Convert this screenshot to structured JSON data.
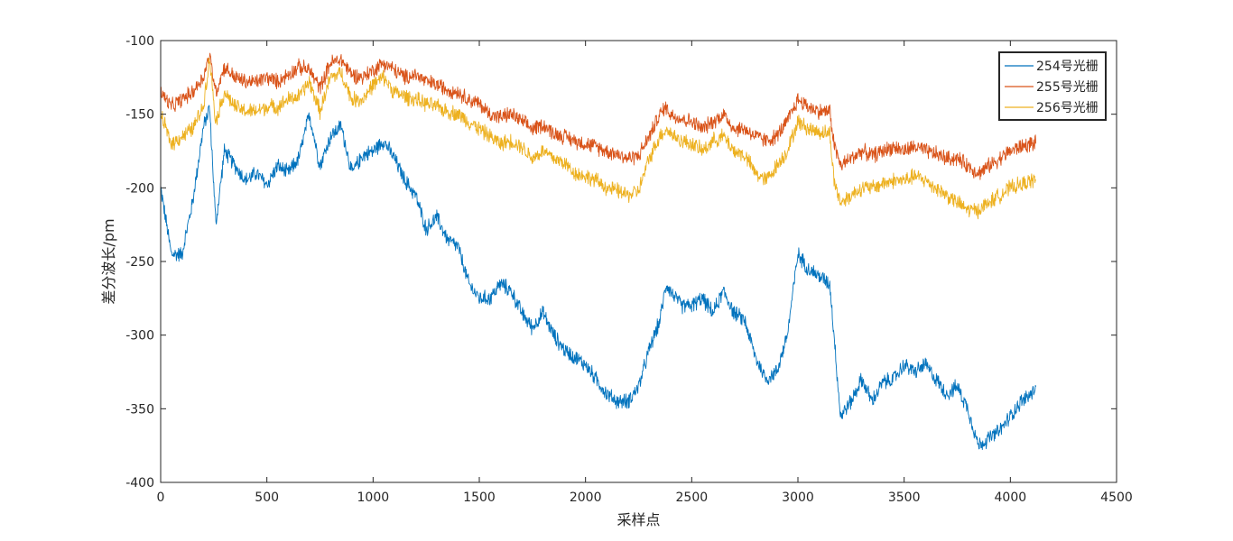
{
  "chart_data": {
    "type": "line",
    "title": "",
    "xlabel": "采样点",
    "ylabel": "差分波长/pm",
    "xlim": [
      0,
      4500
    ],
    "ylim": [
      -400,
      -100
    ],
    "xticks": [
      0,
      500,
      1000,
      1500,
      2000,
      2500,
      3000,
      3500,
      4000,
      4500
    ],
    "yticks": [
      -100,
      -150,
      -200,
      -250,
      -300,
      -350,
      -400
    ],
    "grid": false,
    "legend_position": "top-right",
    "noise_amplitude": 9,
    "series": [
      {
        "name": "254号光栅",
        "color": "#0072BD",
        "x": [
          0,
          50,
          100,
          150,
          200,
          230,
          260,
          300,
          350,
          400,
          450,
          500,
          550,
          600,
          650,
          700,
          750,
          800,
          850,
          900,
          950,
          1000,
          1050,
          1100,
          1150,
          1200,
          1250,
          1300,
          1350,
          1400,
          1450,
          1500,
          1550,
          1600,
          1650,
          1700,
          1750,
          1800,
          1850,
          1900,
          1950,
          2000,
          2050,
          2100,
          2150,
          2200,
          2250,
          2300,
          2350,
          2380,
          2400,
          2450,
          2500,
          2550,
          2600,
          2650,
          2700,
          2750,
          2800,
          2850,
          2900,
          2950,
          3000,
          3050,
          3100,
          3150,
          3170,
          3200,
          3250,
          3300,
          3350,
          3400,
          3450,
          3500,
          3550,
          3600,
          3650,
          3700,
          3750,
          3800,
          3850,
          3900,
          3950,
          4000,
          4050,
          4100,
          4120
        ],
        "y": [
          -200,
          -245,
          -245,
          -210,
          -160,
          -145,
          -225,
          -175,
          -185,
          -195,
          -190,
          -198,
          -185,
          -190,
          -180,
          -150,
          -185,
          -165,
          -158,
          -190,
          -178,
          -175,
          -168,
          -180,
          -195,
          -205,
          -228,
          -220,
          -235,
          -240,
          -265,
          -275,
          -275,
          -265,
          -270,
          -285,
          -295,
          -285,
          -300,
          -310,
          -315,
          -320,
          -330,
          -340,
          -345,
          -345,
          -335,
          -310,
          -290,
          -265,
          -270,
          -280,
          -280,
          -275,
          -285,
          -270,
          -285,
          -290,
          -315,
          -330,
          -325,
          -300,
          -245,
          -255,
          -260,
          -265,
          -300,
          -355,
          -345,
          -330,
          -345,
          -332,
          -330,
          -320,
          -325,
          -320,
          -330,
          -340,
          -335,
          -350,
          -375,
          -370,
          -365,
          -355,
          -345,
          -340,
          -335
        ]
      },
      {
        "name": "255号光栅",
        "color": "#D95319",
        "x": [
          0,
          50,
          100,
          150,
          200,
          230,
          260,
          300,
          350,
          400,
          450,
          500,
          550,
          600,
          650,
          700,
          750,
          800,
          850,
          900,
          950,
          1000,
          1050,
          1100,
          1150,
          1200,
          1250,
          1300,
          1350,
          1400,
          1450,
          1500,
          1550,
          1600,
          1650,
          1700,
          1750,
          1800,
          1850,
          1900,
          1950,
          2000,
          2050,
          2100,
          2150,
          2200,
          2250,
          2300,
          2350,
          2380,
          2400,
          2450,
          2500,
          2550,
          2600,
          2650,
          2700,
          2750,
          2800,
          2850,
          2900,
          2950,
          3000,
          3050,
          3100,
          3150,
          3170,
          3200,
          3250,
          3300,
          3350,
          3400,
          3450,
          3500,
          3550,
          3600,
          3650,
          3700,
          3750,
          3800,
          3850,
          3900,
          3950,
          4000,
          4050,
          4100,
          4120
        ],
        "y": [
          -135,
          -145,
          -140,
          -135,
          -125,
          -110,
          -135,
          -118,
          -125,
          -128,
          -128,
          -125,
          -128,
          -123,
          -118,
          -120,
          -132,
          -115,
          -113,
          -123,
          -125,
          -120,
          -115,
          -120,
          -125,
          -123,
          -128,
          -130,
          -133,
          -135,
          -140,
          -143,
          -150,
          -152,
          -150,
          -155,
          -160,
          -157,
          -163,
          -165,
          -168,
          -170,
          -172,
          -175,
          -177,
          -180,
          -178,
          -165,
          -150,
          -145,
          -150,
          -153,
          -155,
          -160,
          -155,
          -150,
          -160,
          -160,
          -165,
          -168,
          -165,
          -155,
          -140,
          -145,
          -148,
          -148,
          -170,
          -185,
          -180,
          -175,
          -178,
          -175,
          -172,
          -175,
          -172,
          -175,
          -177,
          -180,
          -180,
          -185,
          -190,
          -185,
          -180,
          -175,
          -172,
          -170,
          -170
        ]
      },
      {
        "name": "256号光栅",
        "color": "#EDB120",
        "x": [
          0,
          50,
          100,
          150,
          200,
          230,
          260,
          300,
          350,
          400,
          450,
          500,
          550,
          600,
          650,
          700,
          750,
          800,
          850,
          900,
          950,
          1000,
          1050,
          1100,
          1150,
          1200,
          1250,
          1300,
          1350,
          1400,
          1450,
          1500,
          1550,
          1600,
          1650,
          1700,
          1750,
          1800,
          1850,
          1900,
          1950,
          2000,
          2050,
          2100,
          2150,
          2200,
          2250,
          2300,
          2350,
          2380,
          2400,
          2450,
          2500,
          2550,
          2600,
          2650,
          2700,
          2750,
          2800,
          2850,
          2900,
          2950,
          3000,
          3050,
          3100,
          3150,
          3170,
          3200,
          3250,
          3300,
          3350,
          3400,
          3450,
          3500,
          3550,
          3600,
          3650,
          3700,
          3750,
          3800,
          3850,
          3900,
          3950,
          4000,
          4050,
          4100,
          4120
        ],
        "y": [
          -150,
          -170,
          -165,
          -160,
          -145,
          -112,
          -155,
          -135,
          -145,
          -148,
          -148,
          -145,
          -145,
          -140,
          -138,
          -128,
          -148,
          -125,
          -122,
          -140,
          -140,
          -130,
          -125,
          -135,
          -138,
          -140,
          -143,
          -145,
          -148,
          -150,
          -155,
          -160,
          -165,
          -170,
          -168,
          -172,
          -180,
          -175,
          -180,
          -183,
          -190,
          -192,
          -195,
          -200,
          -202,
          -205,
          -202,
          -180,
          -165,
          -160,
          -163,
          -168,
          -170,
          -175,
          -168,
          -165,
          -175,
          -178,
          -190,
          -195,
          -185,
          -175,
          -155,
          -160,
          -162,
          -163,
          -195,
          -210,
          -205,
          -200,
          -200,
          -197,
          -195,
          -195,
          -192,
          -195,
          -200,
          -205,
          -210,
          -215,
          -215,
          -210,
          -205,
          -200,
          -198,
          -195,
          -195
        ]
      }
    ]
  }
}
